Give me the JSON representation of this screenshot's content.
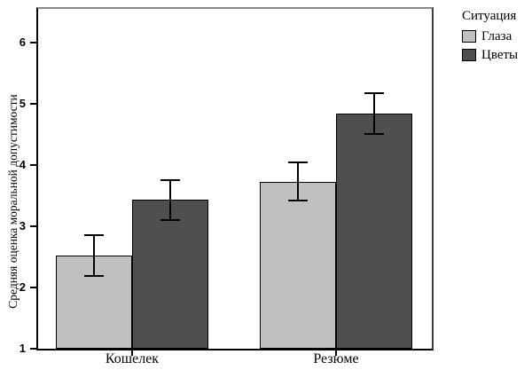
{
  "chart_data": {
    "type": "bar",
    "title": "",
    "categories": [
      "Кошелек",
      "Резюме"
    ],
    "series": [
      {
        "name": "Глаза",
        "color": "#c0c0c0",
        "values": [
          2.52,
          3.73
        ],
        "errors": [
          0.33,
          0.31
        ]
      },
      {
        "name": "Цветы",
        "color": "#4f4f4f",
        "values": [
          3.43,
          4.84
        ],
        "errors": [
          0.33,
          0.34
        ]
      }
    ],
    "xlabel": "",
    "ylabel": "Средняя оценка моральной допустимости",
    "ylim": [
      1,
      6.55
    ],
    "yticks": [
      1,
      2,
      3,
      4,
      5,
      6
    ],
    "grid": false,
    "error_bars": true,
    "legend_title": "Ситуация",
    "legend_position": "top-right"
  }
}
